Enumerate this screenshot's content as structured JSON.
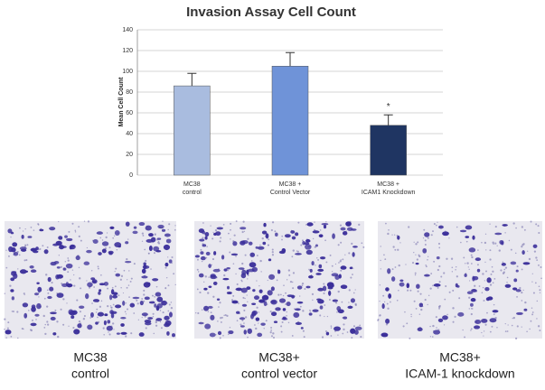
{
  "chart_data": {
    "type": "bar",
    "title": "Invasion Assay Cell Count",
    "y_label": "Mean Cell Count",
    "categories": [
      [
        "MC38",
        "control"
      ],
      [
        "MC38 +",
        "Control Vector"
      ],
      [
        "MC38 +",
        "ICAM1 Knockdown"
      ]
    ],
    "values": [
      86,
      105,
      48
    ],
    "errors": [
      12,
      13,
      10
    ],
    "colors": [
      "#a9bcdf",
      "#6f93d8",
      "#1f3562"
    ],
    "annotation": "*",
    "ylim": [
      0,
      140
    ],
    "yticks": [
      0,
      20,
      40,
      60,
      80,
      100,
      120,
      140
    ],
    "grid": true
  },
  "panels": [
    {
      "caption": [
        "MC38",
        "control"
      ],
      "density": 1
    },
    {
      "caption": [
        "MC38+",
        "control vector"
      ],
      "density": 1
    },
    {
      "caption": [
        "MC38+",
        "ICAM-1 knockdown"
      ],
      "density": 0.4
    }
  ]
}
